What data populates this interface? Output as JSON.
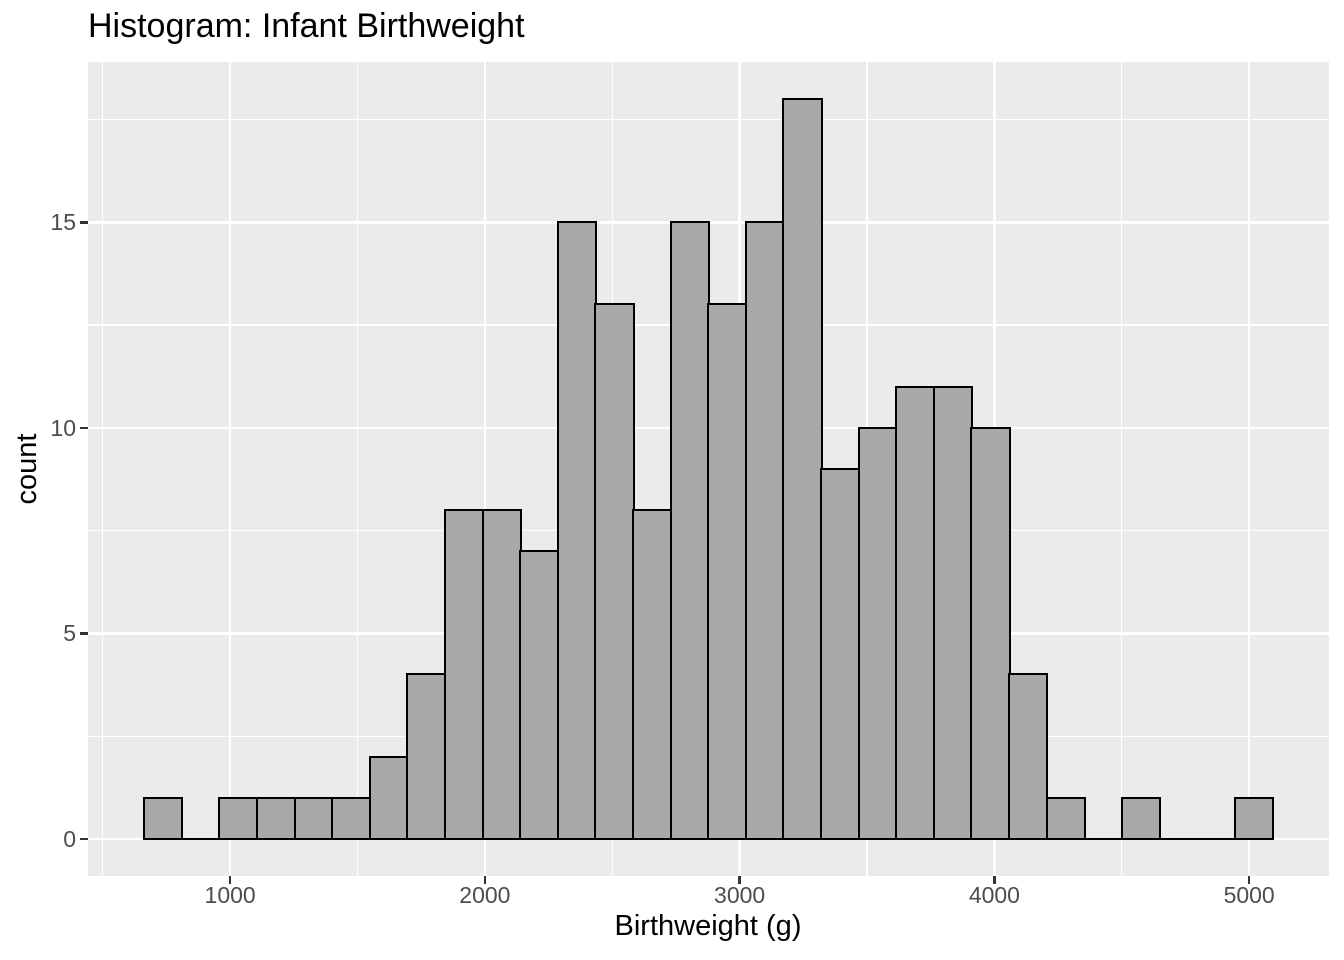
{
  "page": {
    "background": "#FFFFFF"
  },
  "chart_data": {
    "type": "bar",
    "subtype": "histogram",
    "title": "Histogram: Infant Birthweight",
    "xlabel": "Birthweight (g)",
    "ylabel": "count",
    "bin_start": 663.4,
    "binwidth": 147.62,
    "counts": [
      1,
      0,
      1,
      1,
      1,
      1,
      2,
      4,
      8,
      8,
      7,
      15,
      13,
      8,
      15,
      13,
      15,
      18,
      9,
      10,
      11,
      11,
      10,
      4,
      1,
      0,
      1,
      0,
      0,
      1
    ],
    "x_ticks": [
      1000,
      2000,
      3000,
      4000,
      5000
    ],
    "x_minor_gridlines": [
      500,
      1500,
      2500,
      3500,
      4500
    ],
    "y_ticks": [
      0,
      5,
      10,
      15
    ],
    "y_minor_gridlines": [
      2.5,
      7.5,
      12.5,
      17.5
    ],
    "x_domain": [
      442,
      5313.4
    ],
    "y_domain": [
      -0.9,
      18.9
    ],
    "ymax_bar": 18,
    "grid": "on",
    "legend_position": "none",
    "colors": {
      "panel_background": "#EBEBEB",
      "gridline": "#FFFFFF",
      "bar_fill": "#A9A9A9",
      "bar_stroke": "#000000",
      "axis_tick": "#333333",
      "tick_label": "#4D4D4D",
      "text": "#000000"
    }
  }
}
